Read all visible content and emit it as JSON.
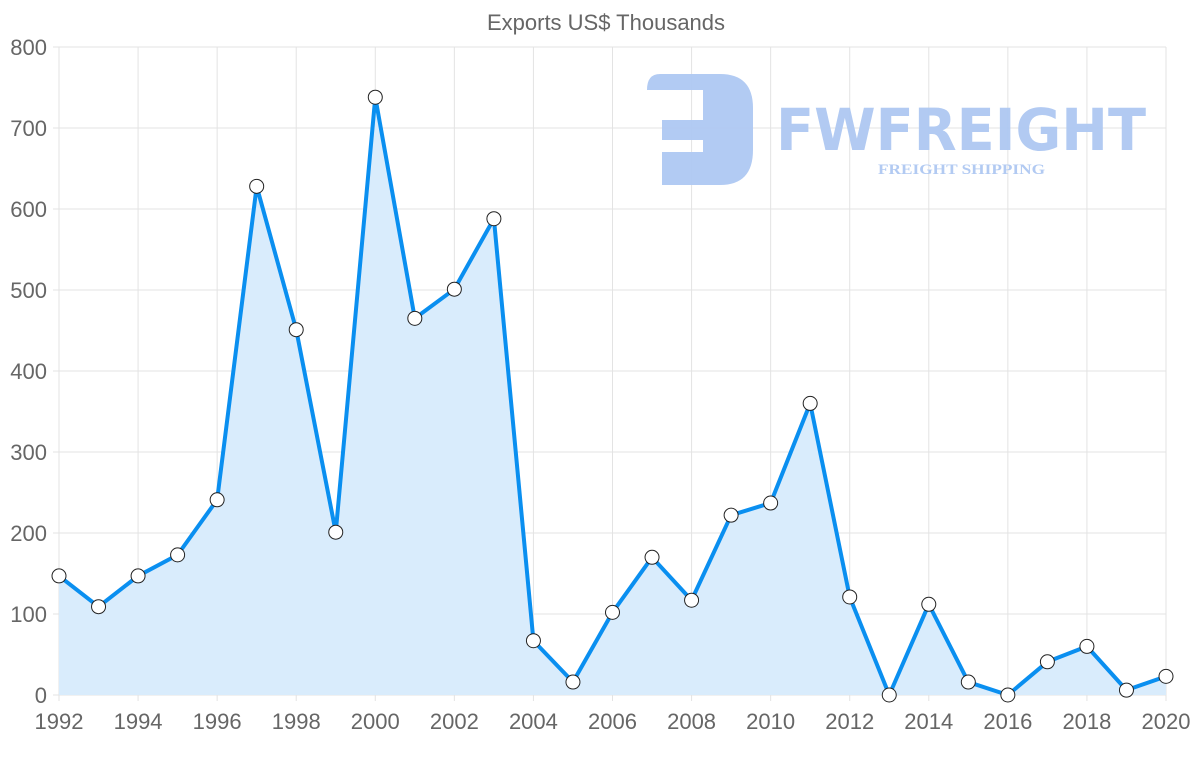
{
  "chart_data": {
    "type": "line",
    "title": "Exports US$ Thousands",
    "xlabel": "",
    "ylabel": "",
    "x": [
      1992,
      1993,
      1994,
      1995,
      1996,
      1997,
      1998,
      1999,
      2000,
      2001,
      2002,
      2003,
      2004,
      2005,
      2006,
      2007,
      2008,
      2009,
      2010,
      2011,
      2012,
      2013,
      2014,
      2015,
      2016,
      2017,
      2018,
      2019,
      2020
    ],
    "series": [
      {
        "name": "Exports US$ Thousands",
        "values": [
          147,
          109,
          147,
          173,
          241,
          628,
          451,
          201,
          738,
          465,
          501,
          588,
          67,
          16,
          102,
          170,
          117,
          222,
          237,
          360,
          121,
          0,
          112,
          16,
          0,
          41,
          60,
          6,
          23
        ]
      }
    ],
    "xlim": [
      1992,
      2020
    ],
    "ylim": [
      0,
      800
    ],
    "x_ticks": [
      "1992",
      "1994",
      "1996",
      "1998",
      "2000",
      "2002",
      "2004",
      "2006",
      "2008",
      "2010",
      "2012",
      "2014",
      "2016",
      "2018",
      "2020"
    ],
    "y_ticks": [
      "0",
      "100",
      "200",
      "300",
      "400",
      "500",
      "600",
      "700",
      "800"
    ],
    "grid": true,
    "fill": true,
    "colors": {
      "line": "#0a8ff0",
      "fill": "#d9ecfc",
      "grid": "#e3e3e3",
      "logo": "#aec8f2"
    }
  },
  "watermark": {
    "brand": "FWFREIGHT",
    "tagline": "FREIGHT SHIPPING"
  }
}
